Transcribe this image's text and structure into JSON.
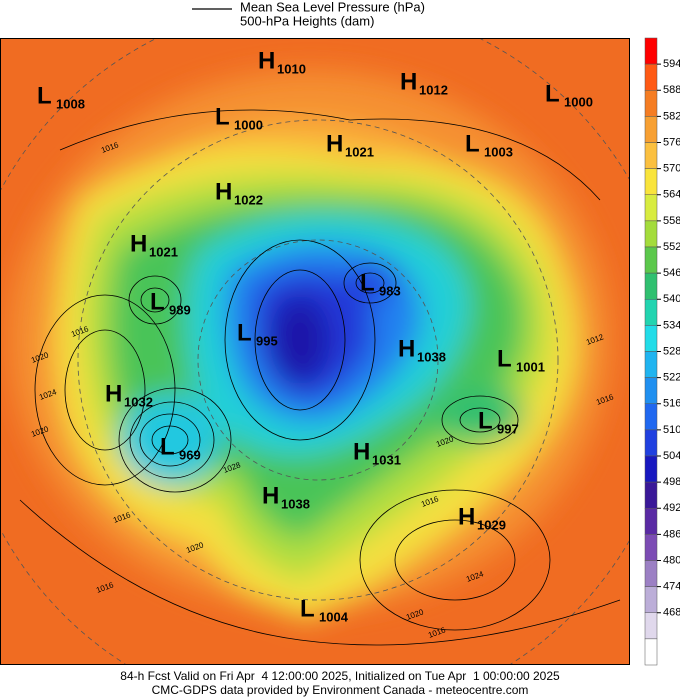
{
  "legend": {
    "items": [
      "Mean Sea Level Pressure (hPa)",
      "500-hPa Heights (dam)"
    ]
  },
  "pressure_centers": [
    {
      "type": "H",
      "value": 1010
    },
    {
      "type": "H",
      "value": 1012
    },
    {
      "type": "L",
      "value": 1008
    },
    {
      "type": "L",
      "value": 1000
    },
    {
      "type": "L",
      "value": 1000
    },
    {
      "type": "H",
      "value": 1021
    },
    {
      "type": "L",
      "value": 1003
    },
    {
      "type": "H",
      "value": 1022
    },
    {
      "type": "H",
      "value": 1021
    },
    {
      "type": "L",
      "value": 989
    },
    {
      "type": "L",
      "value": 995
    },
    {
      "type": "L",
      "value": 983
    },
    {
      "type": "H",
      "value": 1038
    },
    {
      "type": "L",
      "value": 1001
    },
    {
      "type": "H",
      "value": 1032
    },
    {
      "type": "L",
      "value": 997
    },
    {
      "type": "L",
      "value": 969
    },
    {
      "type": "H",
      "value": 1031
    },
    {
      "type": "H",
      "value": 1038
    },
    {
      "type": "H",
      "value": 1029
    },
    {
      "type": "L",
      "value": 1004
    }
  ],
  "contour_labels": [
    1016,
    1016,
    1020,
    1024,
    1020,
    1016,
    1016,
    1020,
    1016,
    1024,
    1020,
    1016,
    1012,
    1016,
    1020,
    1028
  ],
  "colorbar": {
    "ticks": [
      594,
      588,
      582,
      576,
      570,
      564,
      558,
      552,
      546,
      540,
      534,
      528,
      522,
      516,
      510,
      504,
      498,
      492,
      486,
      480,
      474,
      468
    ],
    "colors": [
      "#ff0000",
      "#ff5a14",
      "#f57d23",
      "#f7a033",
      "#fbc040",
      "#f9e43c",
      "#d8ec40",
      "#a4dc3c",
      "#5cc84c",
      "#30c070",
      "#22d4b0",
      "#22dce8",
      "#20b4f0",
      "#2090f0",
      "#2068f0",
      "#2040e0",
      "#1818c0",
      "#3a1898",
      "#5a2aa4",
      "#7c4cb4",
      "#9c80c4",
      "#bcaed8",
      "#e0d8ec",
      "#ffffff"
    ]
  },
  "footer": {
    "lines": [
      "84-h Fcst Valid on Fri Apr  4 12:00:00 2025, Initialized on Tue Apr  1 00:00:00 2025",
      "CMC-GDPS data provided by Environment Canada - meteocentre.com"
    ]
  }
}
